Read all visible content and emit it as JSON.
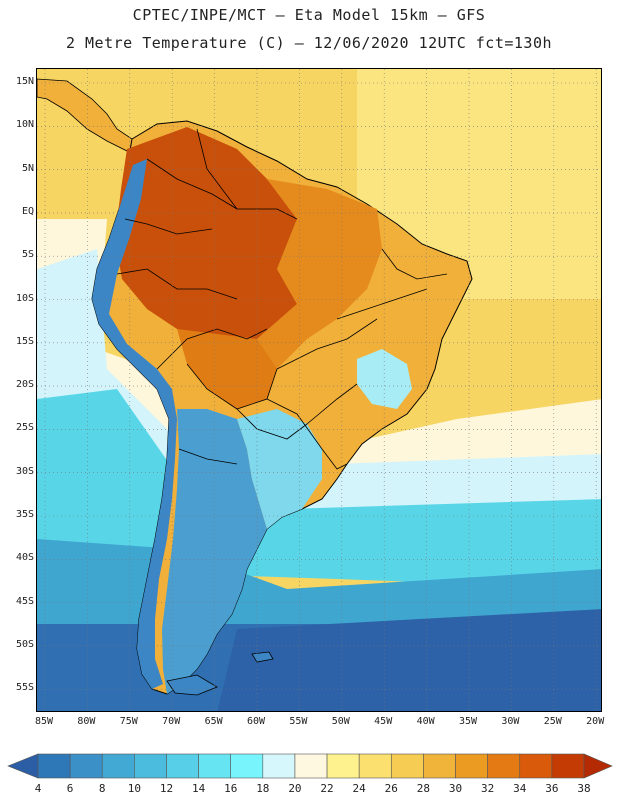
{
  "header": {
    "title_line1": "CPTEC/INPE/MCT –  Eta Model 15km – GFS",
    "title_line2": "2 Metre Temperature (C) – 12/06/2020 12UTC fct=130h"
  },
  "map": {
    "lat_ticks": [
      "15N",
      "10N",
      "5N",
      "EQ",
      "5S",
      "10S",
      "15S",
      "20S",
      "25S",
      "30S",
      "35S",
      "40S",
      "45S",
      "50S",
      "55S"
    ],
    "lon_ticks": [
      "85W",
      "80W",
      "75W",
      "70W",
      "65W",
      "60W",
      "55W",
      "50W",
      "45W",
      "40W",
      "35W",
      "30W",
      "25W",
      "20W"
    ],
    "colors": {
      "ocean_north": "#f7d562",
      "ocean_north_far": "#fbe98c",
      "ocean_tropic": "#fff7dc",
      "ocean_cool": "#d2f4fa",
      "ocean_mid": "#58d6e8",
      "ocean_south": "#3fa6d0",
      "ocean_deep": "#2f6fb2",
      "land_hot": "#c8500a",
      "land_warm": "#e58a1c",
      "land_mild": "#f0b03a",
      "andes_cold": "#3c86c6",
      "patagonia": "#4a9fd0",
      "border": "#000000",
      "gridline": "#777777"
    }
  },
  "colorbar": {
    "labels": [
      "4",
      "6",
      "8",
      "10",
      "12",
      "14",
      "16",
      "18",
      "20",
      "22",
      "24",
      "26",
      "28",
      "30",
      "32",
      "34",
      "36",
      "38"
    ],
    "colors": [
      "#2c5ea6",
      "#2f78b8",
      "#3c90c8",
      "#42a8d4",
      "#4cbcde",
      "#58cfe8",
      "#66e4f2",
      "#78f4fc",
      "#d6f8fc",
      "#fff8e0",
      "#fef28e",
      "#fbe070",
      "#f6cc52",
      "#f0b43a",
      "#eb9a22",
      "#e37a14",
      "#d85a0a",
      "#c43c04",
      "#b42a02"
    ]
  }
}
